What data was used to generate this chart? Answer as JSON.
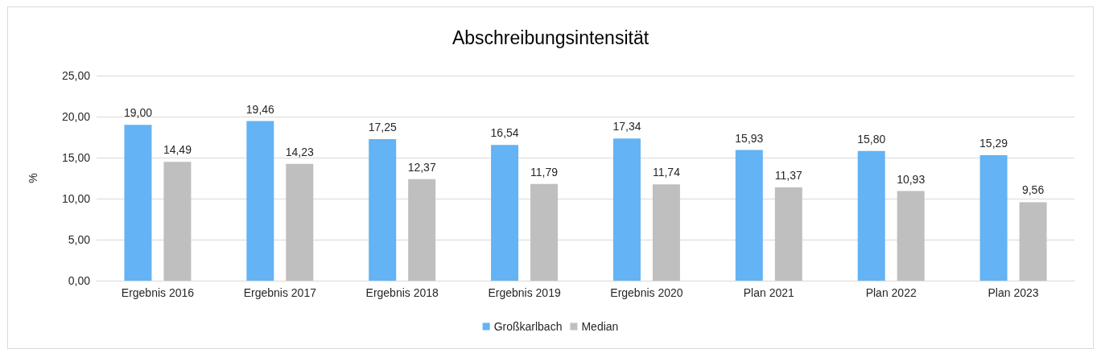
{
  "chart_data": {
    "type": "bar",
    "title": "Abschreibungsintensität",
    "ylabel": "%",
    "categories": [
      "Ergebnis 2016",
      "Ergebnis 2017",
      "Ergebnis 2018",
      "Ergebnis 2019",
      "Ergebnis 2020",
      "Plan 2021",
      "Plan 2022",
      "Plan 2023"
    ],
    "series": [
      {
        "name": "Großkarlbach",
        "color": "#63b3f5",
        "values": [
          19.0,
          19.46,
          17.25,
          16.54,
          17.34,
          15.93,
          15.8,
          15.29
        ],
        "value_labels": [
          "19,00",
          "19,46",
          "17,25",
          "16,54",
          "17,34",
          "15,93",
          "15,80",
          "15,29"
        ]
      },
      {
        "name": "Median",
        "color": "#bfbfbf",
        "values": [
          14.49,
          14.23,
          12.37,
          11.79,
          11.74,
          11.37,
          10.93,
          9.56
        ],
        "value_labels": [
          "14,49",
          "14,23",
          "12,37",
          "11,79",
          "11,74",
          "11,37",
          "10,93",
          "9,56"
        ]
      }
    ],
    "ylim": [
      0,
      25
    ],
    "yticks": [
      {
        "value": 0,
        "label": "0,00"
      },
      {
        "value": 5,
        "label": "5,00"
      },
      {
        "value": 10,
        "label": "10,00"
      },
      {
        "value": 15,
        "label": "15,00"
      },
      {
        "value": 20,
        "label": "20,00"
      },
      {
        "value": 25,
        "label": "25,00"
      }
    ],
    "grid": "y",
    "legend": "bottom"
  }
}
